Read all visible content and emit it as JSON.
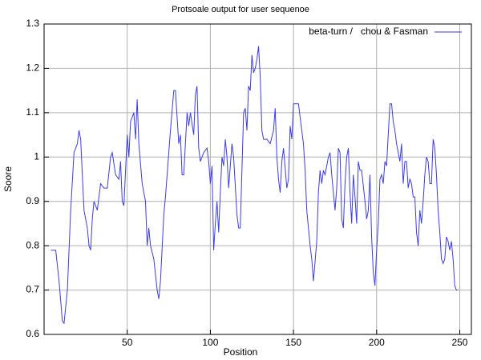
{
  "chart_data": {
    "type": "line",
    "title": "Protsoale output for user sequenoe",
    "xlabel": "Position",
    "ylabel": "Soore",
    "xlim": [
      0,
      257
    ],
    "ylim": [
      0.6,
      1.3
    ],
    "xticks": [
      50,
      100,
      150,
      200,
      250
    ],
    "yticks": [
      0.6,
      0.7,
      0.8,
      0.9,
      1,
      1.1,
      1.2,
      1.3
    ],
    "grid": true,
    "legend": "top-right",
    "x": [
      4,
      7,
      9,
      11,
      12,
      14,
      16,
      18,
      20,
      21,
      22,
      24,
      26,
      27,
      28,
      29,
      30,
      32,
      34,
      36,
      38,
      40,
      41,
      43,
      45,
      46,
      47,
      48,
      50,
      51,
      52,
      54,
      55,
      56,
      57,
      59,
      61,
      62,
      63,
      64,
      66,
      68,
      69,
      70,
      72,
      73,
      74,
      76,
      78,
      79,
      81,
      82,
      83,
      84,
      86,
      87,
      88,
      90,
      91,
      92,
      93,
      94,
      96,
      98,
      99,
      100,
      101,
      102,
      103,
      104,
      105,
      106,
      107,
      108,
      109,
      110,
      111,
      112,
      113,
      114,
      116,
      117,
      118,
      120,
      121,
      122,
      123,
      124,
      125,
      126,
      127,
      128,
      129,
      130,
      131,
      132,
      134,
      136,
      138,
      139,
      140,
      141,
      142,
      143,
      144,
      146,
      147,
      148,
      149,
      150,
      152,
      153,
      154,
      156,
      157,
      158,
      160,
      161,
      162,
      164,
      165,
      166,
      167,
      168,
      169,
      171,
      172,
      173,
      174,
      175,
      176,
      177,
      178,
      179,
      180,
      181,
      182,
      183,
      184,
      185,
      186,
      187,
      188,
      189,
      190,
      191,
      193,
      194,
      195,
      196,
      197,
      198,
      199,
      200,
      201,
      202,
      203,
      204,
      205,
      206,
      207,
      208,
      209,
      210,
      211,
      212,
      213,
      214,
      215,
      216,
      217,
      218,
      219,
      220,
      221,
      222,
      223,
      224,
      225,
      226,
      227,
      228,
      229,
      230,
      231,
      232,
      233,
      234,
      235,
      236,
      237,
      238,
      239,
      240,
      241,
      242,
      243,
      244,
      245,
      246,
      247,
      248,
      249
    ],
    "series": [
      {
        "name": "beta-turn /   chou & Fasman",
        "color": "#3b3bf0",
        "values": [
          0.79,
          0.79,
          0.72,
          0.63,
          0.625,
          0.7,
          0.88,
          1.01,
          1.03,
          1.06,
          1.04,
          0.88,
          0.84,
          0.8,
          0.79,
          0.86,
          0.9,
          0.88,
          0.94,
          0.93,
          0.93,
          1.0,
          1.01,
          0.96,
          0.95,
          0.99,
          0.9,
          0.89,
          1.05,
          1.0,
          1.08,
          1.1,
          1.04,
          1.13,
          1.03,
          0.94,
          0.9,
          0.8,
          0.84,
          0.8,
          0.77,
          0.7,
          0.68,
          0.72,
          0.87,
          0.91,
          0.96,
          1.06,
          1.15,
          1.15,
          1.03,
          1.05,
          0.96,
          0.96,
          1.1,
          1.07,
          1.1,
          1.05,
          1.14,
          1.16,
          1.02,
          0.99,
          1.01,
          1.02,
          0.99,
          0.94,
          0.98,
          0.79,
          0.85,
          0.9,
          0.83,
          0.92,
          1.0,
          0.98,
          1.04,
          1.0,
          0.93,
          0.98,
          1.03,
          1.0,
          0.87,
          0.84,
          0.84,
          1.1,
          1.11,
          1.06,
          1.16,
          1.15,
          1.23,
          1.19,
          1.2,
          1.22,
          1.25,
          1.18,
          1.06,
          1.04,
          1.04,
          1.03,
          1.06,
          1.11,
          1.0,
          0.95,
          0.92,
          0.99,
          1.02,
          0.93,
          0.95,
          1.07,
          1.04,
          1.12,
          1.12,
          1.12,
          1.09,
          1.03,
          0.97,
          0.88,
          0.8,
          0.77,
          0.72,
          0.81,
          0.92,
          0.97,
          0.94,
          0.97,
          0.96,
          1.0,
          1.01,
          0.96,
          0.92,
          0.88,
          0.93,
          1.02,
          1.01,
          0.86,
          0.84,
          0.94,
          1.0,
          1.02,
          0.92,
          0.85,
          0.96,
          0.91,
          0.85,
          0.99,
          0.97,
          0.97,
          0.9,
          0.86,
          0.88,
          0.96,
          0.82,
          0.74,
          0.71,
          0.79,
          0.85,
          0.95,
          0.96,
          0.94,
          0.99,
          0.98,
          1.05,
          1.12,
          1.12,
          1.08,
          1.06,
          1.03,
          1.01,
          0.99,
          1.03,
          0.94,
          0.99,
          0.99,
          0.93,
          0.95,
          0.94,
          0.91,
          0.91,
          0.83,
          0.8,
          0.88,
          0.85,
          0.9,
          0.96,
          1.0,
          0.99,
          0.94,
          0.94,
          1.04,
          1.02,
          0.96,
          0.88,
          0.83,
          0.77,
          0.76,
          0.77,
          0.82,
          0.81,
          0.79,
          0.81,
          0.77,
          0.71,
          0.7,
          0.7
        ]
      }
    ]
  }
}
